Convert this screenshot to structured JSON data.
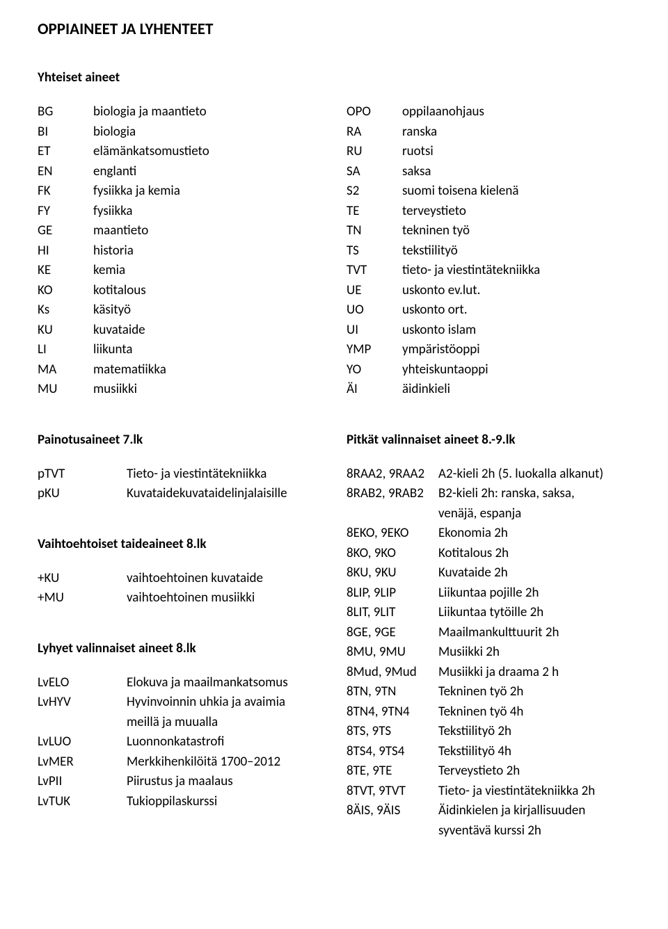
{
  "title": "OPPIAINEET JA LYHENTEET",
  "common_heading": "Yhteiset aineet",
  "left_abbr": [
    {
      "code": "BG",
      "label": "biologia ja maantieto"
    },
    {
      "code": "BI",
      "label": "biologia"
    },
    {
      "code": "ET",
      "label": "elämänkatsomustieto"
    },
    {
      "code": "EN",
      "label": "englanti"
    },
    {
      "code": "FK",
      "label": "fysiikka ja kemia"
    },
    {
      "code": "FY",
      "label": "fysiikka"
    },
    {
      "code": "GE",
      "label": "maantieto"
    },
    {
      "code": "HI",
      "label": "historia"
    },
    {
      "code": "KE",
      "label": "kemia"
    },
    {
      "code": "KO",
      "label": "kotitalous"
    },
    {
      "code": "Ks",
      "label": "käsityö"
    },
    {
      "code": "KU",
      "label": "kuvataide"
    },
    {
      "code": "LI",
      "label": "liikunta"
    },
    {
      "code": "MA",
      "label": "matematiikka"
    },
    {
      "code": "MU",
      "label": "musiikki"
    }
  ],
  "right_abbr": [
    {
      "code": "OPO",
      "label": "oppilaanohjaus"
    },
    {
      "code": "RA",
      "label": "ranska"
    },
    {
      "code": "RU",
      "label": "ruotsi"
    },
    {
      "code": "SA",
      "label": "saksa"
    },
    {
      "code": "S2",
      "label": "suomi toisena kielenä"
    },
    {
      "code": "TE",
      "label": "terveystieto"
    },
    {
      "code": "TN",
      "label": "tekninen työ"
    },
    {
      "code": "TS",
      "label": "tekstiilityö"
    },
    {
      "code": "TVT",
      "label": "tieto- ja viestintätekniikka"
    },
    {
      "code": "UE",
      "label": "uskonto ev.lut."
    },
    {
      "code": "UO",
      "label": "uskonto ort."
    },
    {
      "code": "UI",
      "label": "uskonto islam"
    },
    {
      "code": "YMP",
      "label": "ympäristöoppi"
    },
    {
      "code": "YO",
      "label": "yhteiskuntaoppi"
    },
    {
      "code": "ÄI",
      "label": "äidinkieli"
    }
  ],
  "left_sections": [
    {
      "heading": "Painotusaineet 7.lk",
      "items": [
        {
          "code": "pTVT",
          "label": "Tieto- ja viestintätekniikka"
        },
        {
          "code": "pKU",
          "label": "Kuvataidekuvataidelinjalaisille"
        }
      ]
    },
    {
      "heading": "Vaihtoehtoiset taideaineet 8.lk",
      "items": [
        {
          "code": "+KU",
          "label": "vaihtoehtoinen kuvataide"
        },
        {
          "code": "+MU",
          "label": "vaihtoehtoinen musiikki"
        }
      ]
    },
    {
      "heading": "Lyhyet valinnaiset aineet 8.lk",
      "items": [
        {
          "code": "LvELO",
          "label": "Elokuva ja maailmankatsomus"
        },
        {
          "code": "LvHYV",
          "label": "Hyvinvoinnin uhkia ja avaimia"
        },
        {
          "code": "",
          "label": "meillä ja muualla"
        },
        {
          "code": "LvLUO",
          "label": "Luonnonkatastrofi"
        },
        {
          "code": "LvMER",
          "label": "Merkkihenkilöitä 1700–2012"
        },
        {
          "code": "LvPII",
          "label": "Piirustus ja maalaus"
        },
        {
          "code": "LvTUK",
          "label": "Tukioppilaskurssi"
        }
      ]
    }
  ],
  "right_sections": [
    {
      "heading": "Pitkät valinnaiset aineet 8.-9.lk",
      "items": [
        {
          "code": "8RAA2, 9RAA2",
          "label": "A2-kieli 2h (5. luokalla alkanut)"
        },
        {
          "code": "8RAB2, 9RAB2",
          "label": "B2-kieli 2h: ranska, saksa,"
        },
        {
          "code": "",
          "label": "venäjä, espanja"
        },
        {
          "code": "8EKO, 9EKO",
          "label": "Ekonomia 2h"
        },
        {
          "code": "8KO, 9KO",
          "label": "Kotitalous 2h"
        },
        {
          "code": "8KU, 9KU",
          "label": "Kuvataide 2h"
        },
        {
          "code": "8LIP, 9LIP",
          "label": "Liikuntaa pojille 2h"
        },
        {
          "code": "8LIT, 9LIT",
          "label": "Liikuntaa tytöille 2h"
        },
        {
          "code": "8GE, 9GE",
          "label": "Maailmankulttuurit 2h"
        },
        {
          "code": "8MU, 9MU",
          "label": "Musiikki 2h"
        },
        {
          "code": "8Mud, 9Mud",
          "label": "Musiikki ja draama 2 h"
        },
        {
          "code": "8TN, 9TN",
          "label": "Tekninen työ 2h"
        },
        {
          "code": "8TN4, 9TN4",
          "label": "Tekninen työ 4h"
        },
        {
          "code": "8TS, 9TS",
          "label": "Tekstiilityö 2h"
        },
        {
          "code": "8TS4, 9TS4",
          "label": "Tekstiilityö 4h"
        },
        {
          "code": "8TE, 9TE",
          "label": "Terveystieto 2h"
        },
        {
          "code": "8TVT, 9TVT",
          "label": "Tieto- ja viestintätekniikka 2h"
        },
        {
          "code": "8ÄIS, 9ÄIS",
          "label": "Äidinkielen ja kirjallisuuden"
        },
        {
          "code": "",
          "label": "syventävä kurssi 2h"
        }
      ]
    }
  ]
}
